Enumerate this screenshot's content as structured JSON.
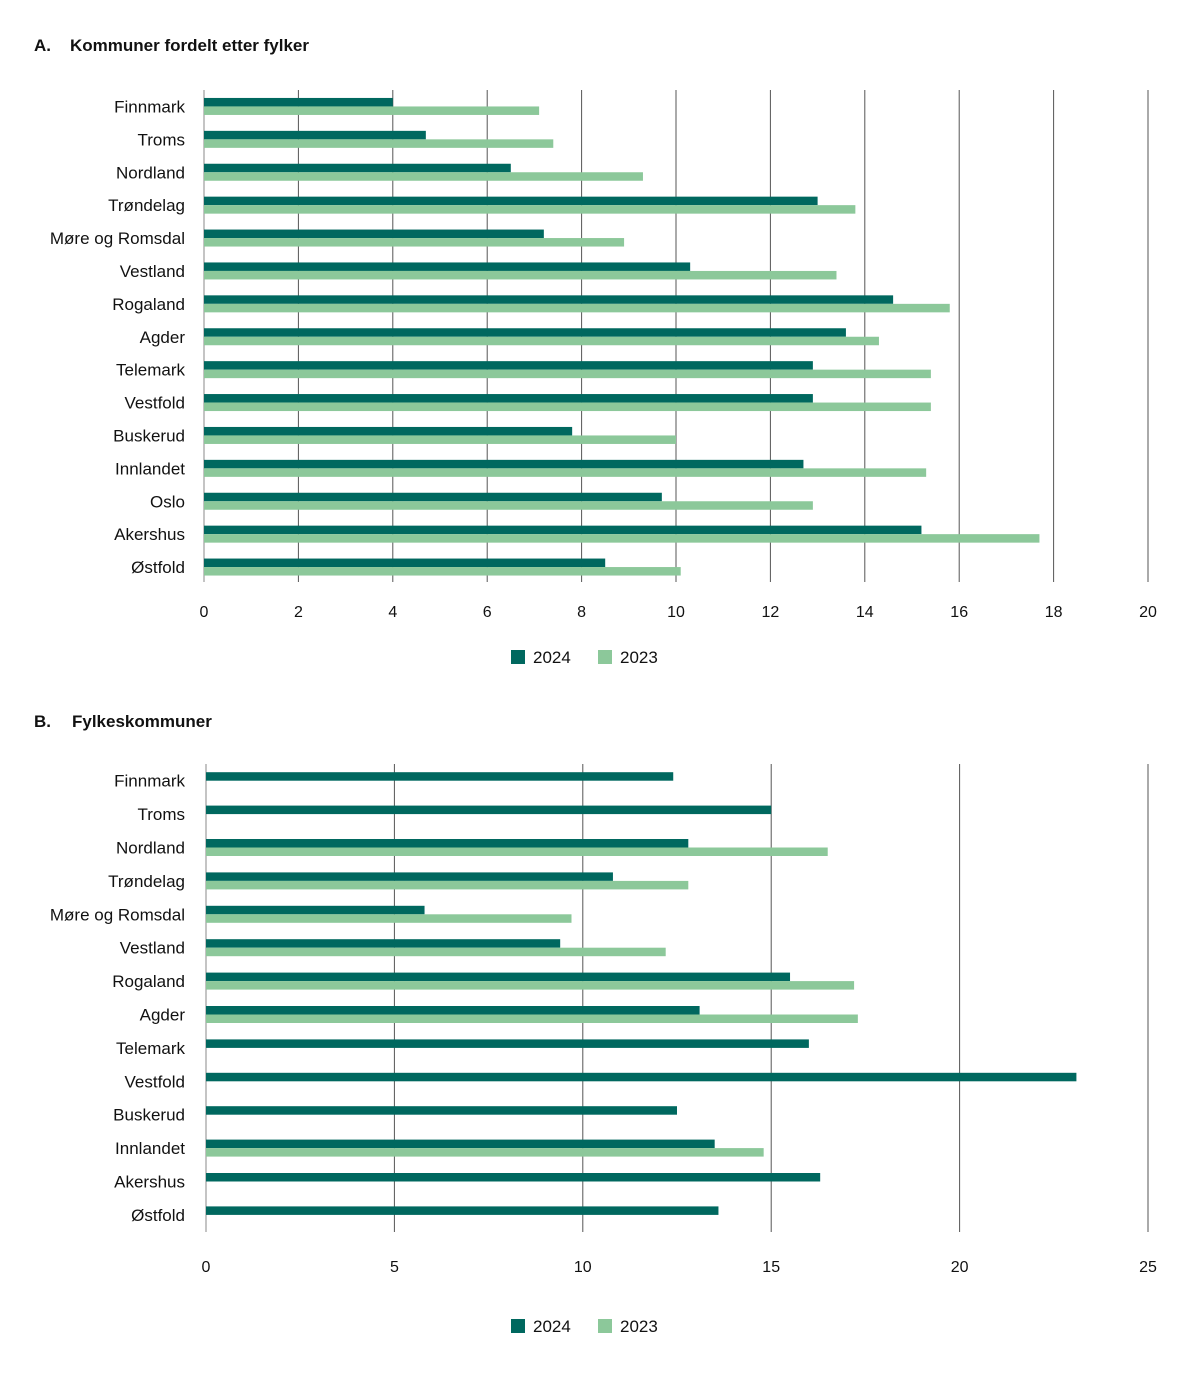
{
  "colors": {
    "s2024": "#00685f",
    "s2023": "#8cc89a",
    "grid": "#555555"
  },
  "chart_data": [
    {
      "type": "bar",
      "orientation": "horizontal",
      "title_prefix": "A.",
      "title": "Kommuner fordelt etter fylker",
      "categories": [
        "Finnmark",
        "Troms",
        "Nordland",
        "Trøndelag",
        "Møre og Romsdal",
        "Vestland",
        "Rogaland",
        "Agder",
        "Telemark",
        "Vestfold",
        "Buskerud",
        "Innlandet",
        "Oslo",
        "Akershus",
        "Østfold"
      ],
      "series": [
        {
          "name": "2024",
          "values": [
            4.0,
            4.7,
            6.5,
            13.0,
            7.2,
            10.3,
            14.6,
            13.6,
            12.9,
            12.9,
            7.8,
            12.7,
            9.7,
            15.2,
            8.5
          ]
        },
        {
          "name": "2023",
          "values": [
            7.1,
            7.4,
            9.3,
            13.8,
            8.9,
            13.4,
            15.8,
            14.3,
            15.4,
            15.4,
            10.0,
            15.3,
            12.9,
            17.7,
            10.1
          ]
        }
      ],
      "xlim": [
        0,
        20
      ],
      "xticks": [
        "0",
        "2",
        "4",
        "6",
        "8",
        "10",
        "12",
        "14",
        "16",
        "18",
        "20"
      ],
      "grid": "vertical",
      "legend": "bottom-center"
    },
    {
      "type": "bar",
      "orientation": "horizontal",
      "title_prefix": "B.",
      "title": "Fylkeskommuner",
      "categories": [
        "Finnmark",
        "Troms",
        "Nordland",
        "Trøndelag",
        "Møre og Romsdal",
        "Vestland",
        "Rogaland",
        "Agder",
        "Telemark",
        "Vestfold",
        "Buskerud",
        "Innlandet",
        "Akershus",
        "Østfold"
      ],
      "series": [
        {
          "name": "2024",
          "values": [
            12.4,
            15.0,
            12.8,
            10.8,
            5.8,
            9.4,
            15.5,
            13.1,
            16.0,
            23.1,
            12.5,
            13.5,
            16.3,
            13.6
          ]
        },
        {
          "name": "2023",
          "values": [
            null,
            null,
            16.5,
            12.8,
            9.7,
            12.2,
            17.2,
            17.3,
            null,
            null,
            null,
            14.8,
            null,
            null
          ]
        }
      ],
      "xlim": [
        0,
        25
      ],
      "xticks": [
        "0",
        "5",
        "10",
        "15",
        "20",
        "25"
      ],
      "grid": "vertical",
      "legend": "bottom-center"
    }
  ]
}
